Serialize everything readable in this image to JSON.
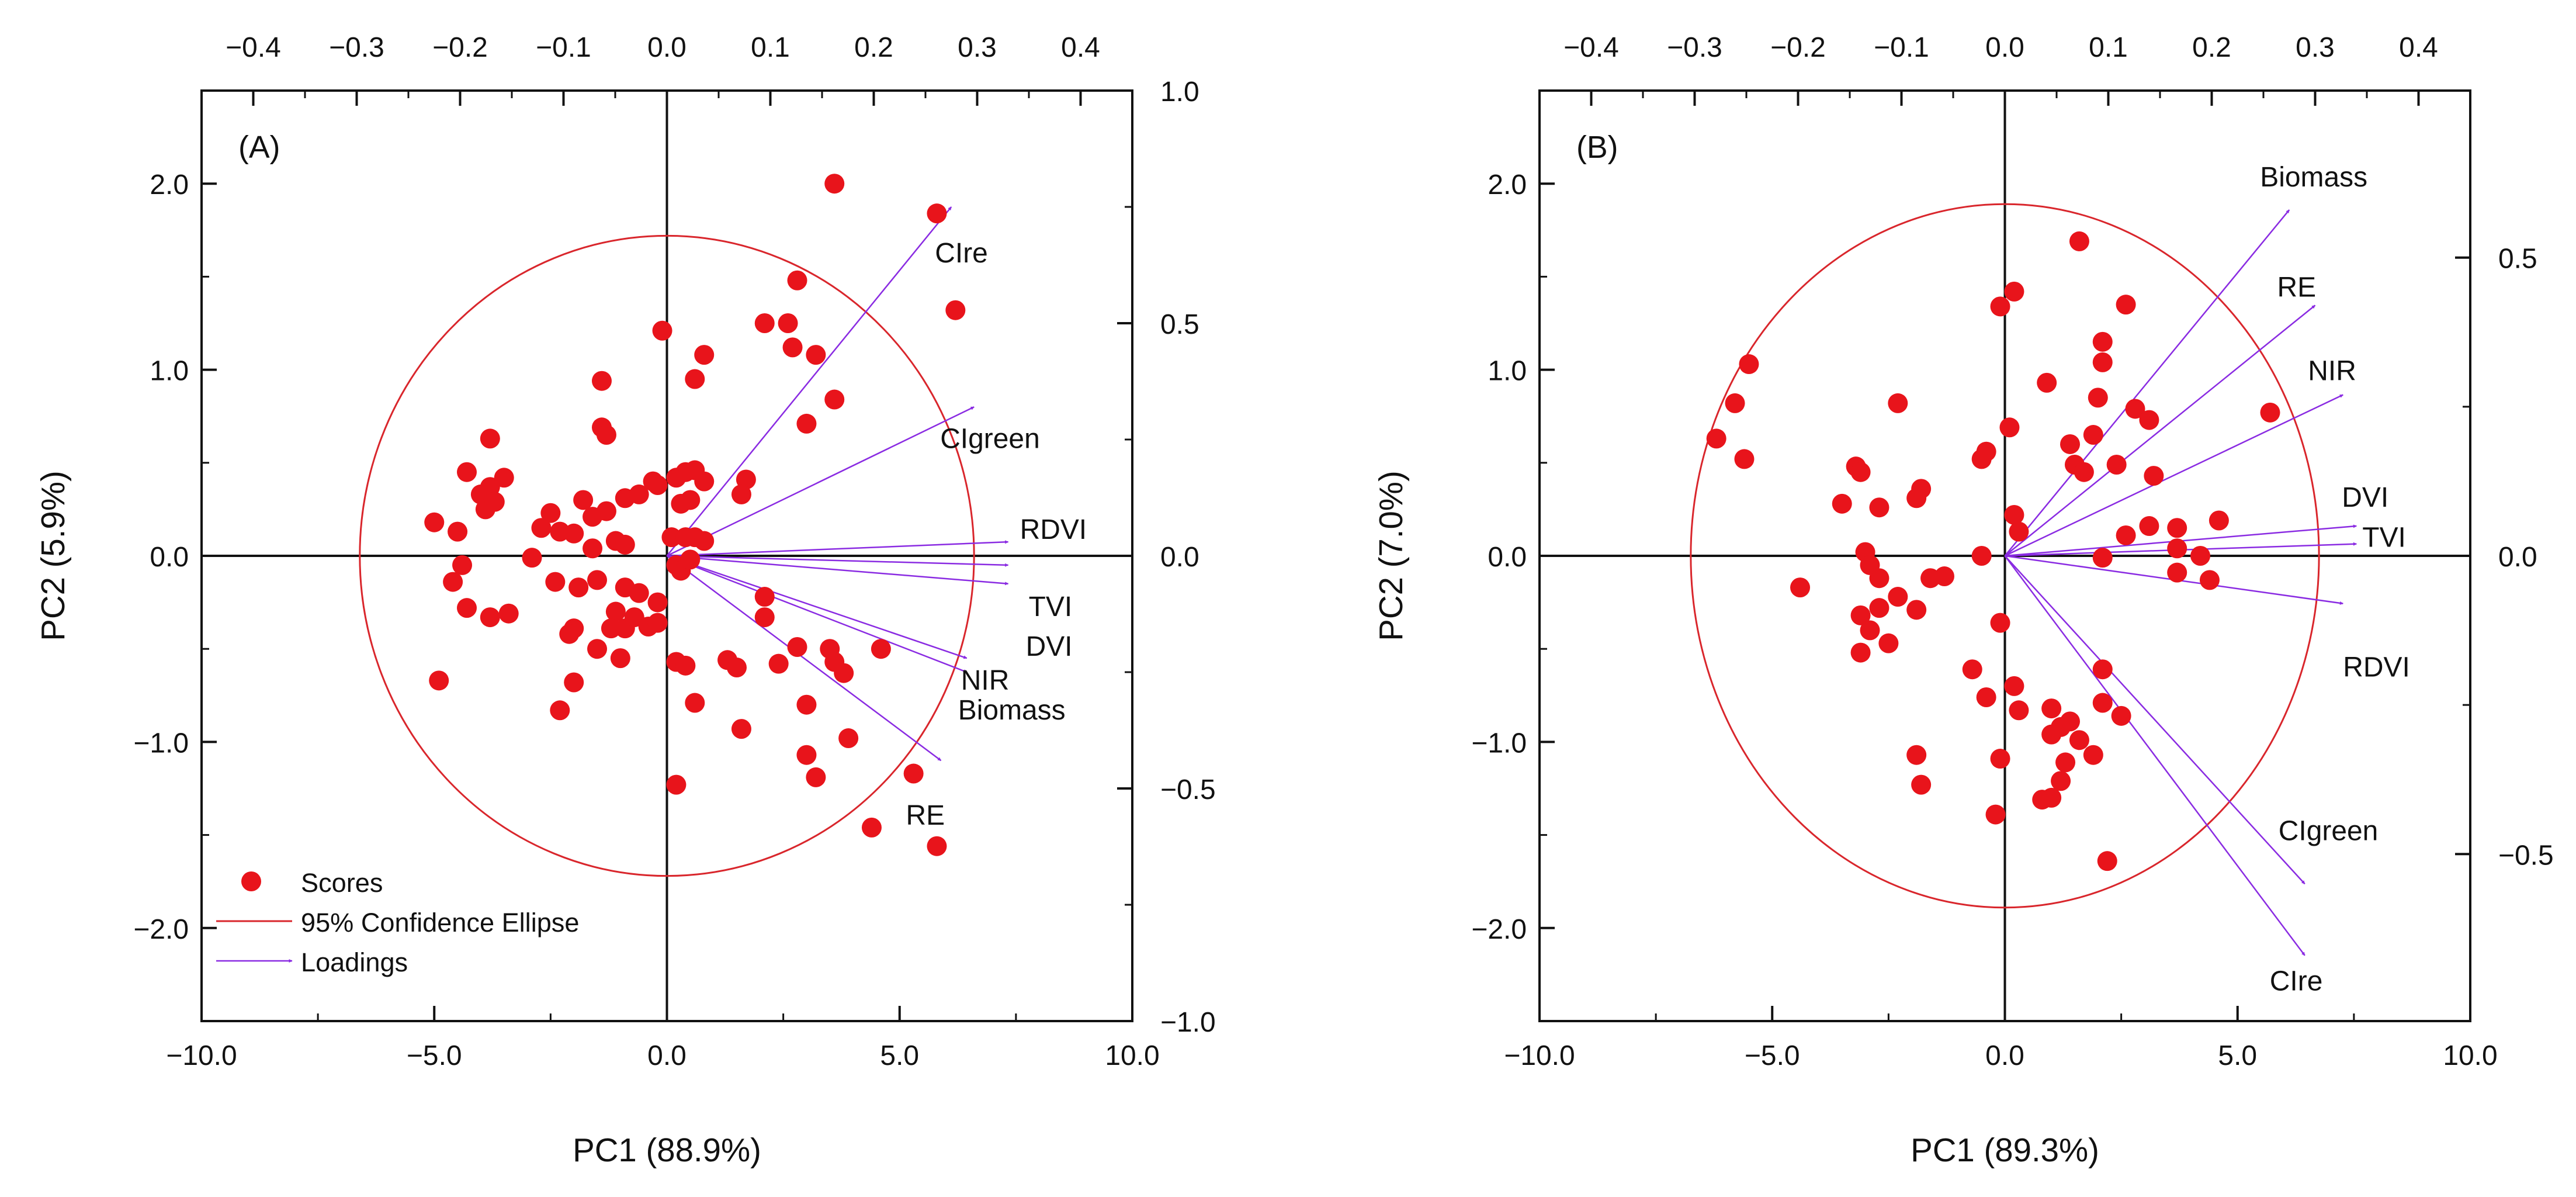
{
  "figure_caption": "",
  "chart_data": [
    {
      "panel_label": "(A)",
      "type": "scatter",
      "title": "",
      "xlabel": "PC1 (88.9%)",
      "ylabel": "PC2 (5.9%)",
      "xlim": [
        -10,
        10
      ],
      "ylim": [
        -2.5,
        2.5
      ],
      "loading_xlim": [
        -0.45,
        0.45
      ],
      "loading_ylim": [
        -1.0,
        1.0
      ],
      "x_ticks": [
        "−10.0",
        "−5.0",
        "0.0",
        "5.0",
        "10.0"
      ],
      "y_ticks": [
        "−2.0",
        "−1.0",
        "0.0",
        "1.0",
        "2.0"
      ],
      "top_ticks": [
        "−0.4",
        "−0.3",
        "−0.2",
        "−0.1",
        "0.0",
        "0.1",
        "0.2",
        "0.3",
        "0.4"
      ],
      "right_ticks": [
        "−1.0",
        "−0.5",
        "0.0",
        "0.5",
        "1.0"
      ],
      "ellipse": {
        "cx": 0.0,
        "cy": 0.0,
        "rx": 6.6,
        "ry": 1.72
      },
      "legend": {
        "position": "bottom-left",
        "entries": [
          "Scores",
          "95% Confidence Ellipse",
          "Loadings"
        ]
      },
      "colors": {
        "scores": "#e8141b",
        "ellipse": "#d9262c",
        "loadings": "#8a2be2"
      },
      "scores": [
        [
          3.6,
          2.0
        ],
        [
          5.8,
          1.84
        ],
        [
          6.2,
          1.32
        ],
        [
          2.8,
          1.48
        ],
        [
          2.1,
          1.25
        ],
        [
          2.6,
          1.25
        ],
        [
          2.7,
          1.12
        ],
        [
          3.2,
          1.08
        ],
        [
          3.6,
          0.84
        ],
        [
          3.0,
          0.71
        ],
        [
          -0.1,
          1.21
        ],
        [
          0.8,
          1.08
        ],
        [
          0.6,
          0.95
        ],
        [
          -1.4,
          0.94
        ],
        [
          -1.4,
          0.69
        ],
        [
          -1.3,
          0.65
        ],
        [
          -3.8,
          0.63
        ],
        [
          -4.3,
          0.45
        ],
        [
          -3.8,
          0.37
        ],
        [
          -4.5,
          0.13
        ],
        [
          -4.0,
          0.33
        ],
        [
          -3.9,
          0.25
        ],
        [
          -3.5,
          0.42
        ],
        [
          -3.7,
          0.29
        ],
        [
          -5.0,
          0.18
        ],
        [
          -4.4,
          -0.05
        ],
        [
          -4.6,
          -0.14
        ],
        [
          -4.3,
          -0.28
        ],
        [
          -3.4,
          -0.31
        ],
        [
          -3.8,
          -0.33
        ],
        [
          -4.9,
          -0.67
        ],
        [
          -2.9,
          -0.01
        ],
        [
          -2.7,
          0.15
        ],
        [
          -2.3,
          0.13
        ],
        [
          -2.5,
          0.23
        ],
        [
          -2.0,
          0.12
        ],
        [
          -1.8,
          0.3
        ],
        [
          -1.6,
          0.21
        ],
        [
          -1.3,
          0.24
        ],
        [
          -0.9,
          0.31
        ],
        [
          -0.6,
          0.33
        ],
        [
          -0.3,
          0.4
        ],
        [
          -0.2,
          0.38
        ],
        [
          0.2,
          0.42
        ],
        [
          0.4,
          0.45
        ],
        [
          0.6,
          0.46
        ],
        [
          0.8,
          0.4
        ],
        [
          1.7,
          0.41
        ],
        [
          1.6,
          0.33
        ],
        [
          0.3,
          0.28
        ],
        [
          0.5,
          0.3
        ],
        [
          -1.1,
          0.08
        ],
        [
          -1.6,
          0.04
        ],
        [
          -0.9,
          0.06
        ],
        [
          0.1,
          0.1
        ],
        [
          0.4,
          0.1
        ],
        [
          0.6,
          0.1
        ],
        [
          0.8,
          0.08
        ],
        [
          0.2,
          -0.05
        ],
        [
          0.3,
          -0.08
        ],
        [
          0.5,
          -0.02
        ],
        [
          -2.4,
          -0.14
        ],
        [
          -1.9,
          -0.17
        ],
        [
          -1.5,
          -0.13
        ],
        [
          -0.9,
          -0.17
        ],
        [
          -0.6,
          -0.2
        ],
        [
          -0.2,
          -0.25
        ],
        [
          -1.1,
          -0.3
        ],
        [
          -1.2,
          -0.39
        ],
        [
          -0.9,
          -0.39
        ],
        [
          -0.7,
          -0.33
        ],
        [
          -0.4,
          -0.38
        ],
        [
          -0.2,
          -0.36
        ],
        [
          -2.0,
          -0.39
        ],
        [
          -2.1,
          -0.42
        ],
        [
          -1.5,
          -0.5
        ],
        [
          -1.0,
          -0.55
        ],
        [
          -2.0,
          -0.68
        ],
        [
          -2.3,
          -0.83
        ],
        [
          0.2,
          -0.57
        ],
        [
          0.4,
          -0.59
        ],
        [
          0.6,
          -0.79
        ],
        [
          1.3,
          -0.56
        ],
        [
          1.5,
          -0.6
        ],
        [
          2.1,
          -0.22
        ],
        [
          2.1,
          -0.33
        ],
        [
          2.4,
          -0.58
        ],
        [
          2.8,
          -0.49
        ],
        [
          3.5,
          -0.5
        ],
        [
          3.6,
          -0.57
        ],
        [
          3.8,
          -0.63
        ],
        [
          4.6,
          -0.5
        ],
        [
          3.0,
          -0.8
        ],
        [
          3.9,
          -0.98
        ],
        [
          3.0,
          -1.07
        ],
        [
          3.2,
          -1.19
        ],
        [
          1.6,
          -0.93
        ],
        [
          5.3,
          -1.17
        ],
        [
          0.2,
          -1.23
        ],
        [
          4.4,
          -1.46
        ],
        [
          5.8,
          -1.56
        ]
      ],
      "loadings": [
        {
          "name": "CIre",
          "x": 0.275,
          "y": 0.75
        },
        {
          "name": "CIgreen",
          "x": 0.297,
          "y": 0.32
        },
        {
          "name": "RDVI",
          "x": 0.33,
          "y": 0.03
        },
        {
          "name": "TVI",
          "x": 0.33,
          "y": -0.06
        },
        {
          "name": "DVI",
          "x": 0.33,
          "y": -0.02
        },
        {
          "name": "Biomass",
          "x": 0.29,
          "y": -0.22
        },
        {
          "name": "NIR",
          "x": 0.29,
          "y": -0.25
        },
        {
          "name": "RE",
          "x": 0.265,
          "y": -0.44
        }
      ]
    },
    {
      "panel_label": "(B)",
      "type": "scatter",
      "title": "",
      "xlabel": "PC1 (89.3%)",
      "ylabel": "PC2 (7.0%)",
      "xlim": [
        -10,
        10
      ],
      "ylim": [
        -2.5,
        2.5
      ],
      "loading_xlim": [
        -0.45,
        0.45
      ],
      "loading_ylim": [
        -0.78,
        0.78
      ],
      "x_ticks": [
        "−10.0",
        "−5.0",
        "0.0",
        "5.0",
        "10.0"
      ],
      "y_ticks": [
        "−2.0",
        "−1.0",
        "0.0",
        "1.0",
        "2.0"
      ],
      "top_ticks": [
        "−0.4",
        "−0.3",
        "−0.2",
        "−0.1",
        "0.0",
        "0.1",
        "0.2",
        "0.3",
        "0.4"
      ],
      "right_ticks": [
        "−0.5",
        "0.0",
        "0.5"
      ],
      "ellipse": {
        "cx": 0.0,
        "cy": 0.0,
        "rx": 6.75,
        "ry": 1.89
      },
      "colors": {
        "scores": "#e8141b",
        "ellipse": "#d9262c",
        "loadings": "#8a2be2"
      },
      "scores": [
        [
          1.6,
          1.69
        ],
        [
          0.2,
          1.42
        ],
        [
          -0.1,
          1.34
        ],
        [
          2.1,
          1.15
        ],
        [
          2.1,
          1.04
        ],
        [
          2.6,
          1.35
        ],
        [
          -5.5,
          1.03
        ],
        [
          -5.8,
          0.82
        ],
        [
          -6.2,
          0.63
        ],
        [
          -2.3,
          0.82
        ],
        [
          0.9,
          0.93
        ],
        [
          2.0,
          0.85
        ],
        [
          2.8,
          0.79
        ],
        [
          3.1,
          0.73
        ],
        [
          5.7,
          0.77
        ],
        [
          -5.6,
          0.52
        ],
        [
          -0.4,
          0.56
        ],
        [
          -0.5,
          0.52
        ],
        [
          1.4,
          0.6
        ],
        [
          1.5,
          0.49
        ],
        [
          1.7,
          0.45
        ],
        [
          1.9,
          0.65
        ],
        [
          2.4,
          0.49
        ],
        [
          3.2,
          0.43
        ],
        [
          -3.2,
          0.48
        ],
        [
          -3.1,
          0.45
        ],
        [
          -3.5,
          0.28
        ],
        [
          -2.7,
          0.26
        ],
        [
          -1.8,
          0.36
        ],
        [
          -1.9,
          0.31
        ],
        [
          0.1,
          0.69
        ],
        [
          0.2,
          0.22
        ],
        [
          0.3,
          0.13
        ],
        [
          2.6,
          0.11
        ],
        [
          3.1,
          0.16
        ],
        [
          3.7,
          0.15
        ],
        [
          4.6,
          0.19
        ],
        [
          3.7,
          0.04
        ],
        [
          4.2,
          0.0
        ],
        [
          2.1,
          -0.01
        ],
        [
          3.7,
          -0.09
        ],
        [
          4.4,
          -0.13
        ],
        [
          -3.0,
          0.02
        ],
        [
          -2.9,
          -0.05
        ],
        [
          -2.7,
          -0.12
        ],
        [
          -4.4,
          -0.17
        ],
        [
          -1.6,
          -0.12
        ],
        [
          -1.3,
          -0.11
        ],
        [
          -0.5,
          0.0
        ],
        [
          -2.3,
          -0.22
        ],
        [
          -2.7,
          -0.28
        ],
        [
          -1.9,
          -0.29
        ],
        [
          -3.1,
          -0.32
        ],
        [
          -2.9,
          -0.4
        ],
        [
          -2.5,
          -0.47
        ],
        [
          -3.1,
          -0.52
        ],
        [
          -0.1,
          -0.36
        ],
        [
          -0.7,
          -0.61
        ],
        [
          0.2,
          -0.7
        ],
        [
          -0.4,
          -0.76
        ],
        [
          0.3,
          -0.83
        ],
        [
          1.0,
          -0.82
        ],
        [
          2.1,
          -0.61
        ],
        [
          2.1,
          -0.79
        ],
        [
          2.5,
          -0.86
        ],
        [
          1.4,
          -0.89
        ],
        [
          1.2,
          -0.92
        ],
        [
          1.0,
          -0.96
        ],
        [
          1.6,
          -0.99
        ],
        [
          1.9,
          -1.07
        ],
        [
          1.3,
          -1.11
        ],
        [
          -0.1,
          -1.09
        ],
        [
          1.2,
          -1.21
        ],
        [
          0.8,
          -1.31
        ],
        [
          1.0,
          -1.3
        ],
        [
          -1.9,
          -1.07
        ],
        [
          -1.8,
          -1.23
        ],
        [
          -0.2,
          -1.39
        ],
        [
          2.2,
          -1.64
        ]
      ],
      "loadings": [
        {
          "name": "Biomass",
          "x": 0.275,
          "y": 0.58
        },
        {
          "name": "RE",
          "x": 0.3,
          "y": 0.42
        },
        {
          "name": "NIR",
          "x": 0.327,
          "y": 0.27
        },
        {
          "name": "DVI",
          "x": 0.34,
          "y": 0.05
        },
        {
          "name": "TVI",
          "x": 0.34,
          "y": 0.02
        },
        {
          "name": "RDVI",
          "x": 0.327,
          "y": -0.08
        },
        {
          "name": "CIgreen",
          "x": 0.29,
          "y": -0.55
        },
        {
          "name": "CIre",
          "x": 0.29,
          "y": -0.67
        }
      ]
    }
  ]
}
